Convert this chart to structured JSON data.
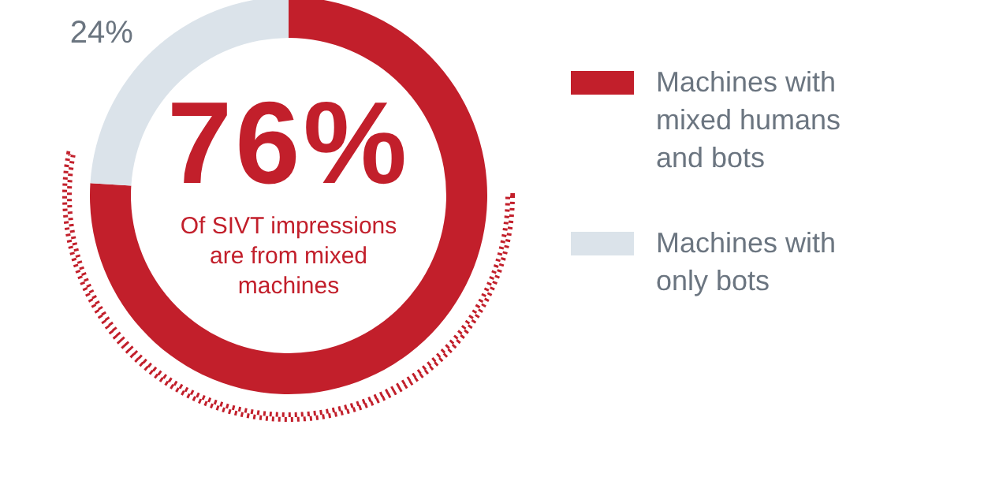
{
  "chart_data": {
    "type": "donut",
    "categories": [
      "Machines with mixed humans and bots",
      "Machines with only bots"
    ],
    "values": [
      76,
      24
    ],
    "colors": [
      "#c21f2b",
      "#dbe3ea"
    ],
    "value_labels": [
      "76%",
      "24%"
    ],
    "annotations": [
      "Of SIVT impressions are from mixed machines"
    ],
    "legend": "right"
  }
}
